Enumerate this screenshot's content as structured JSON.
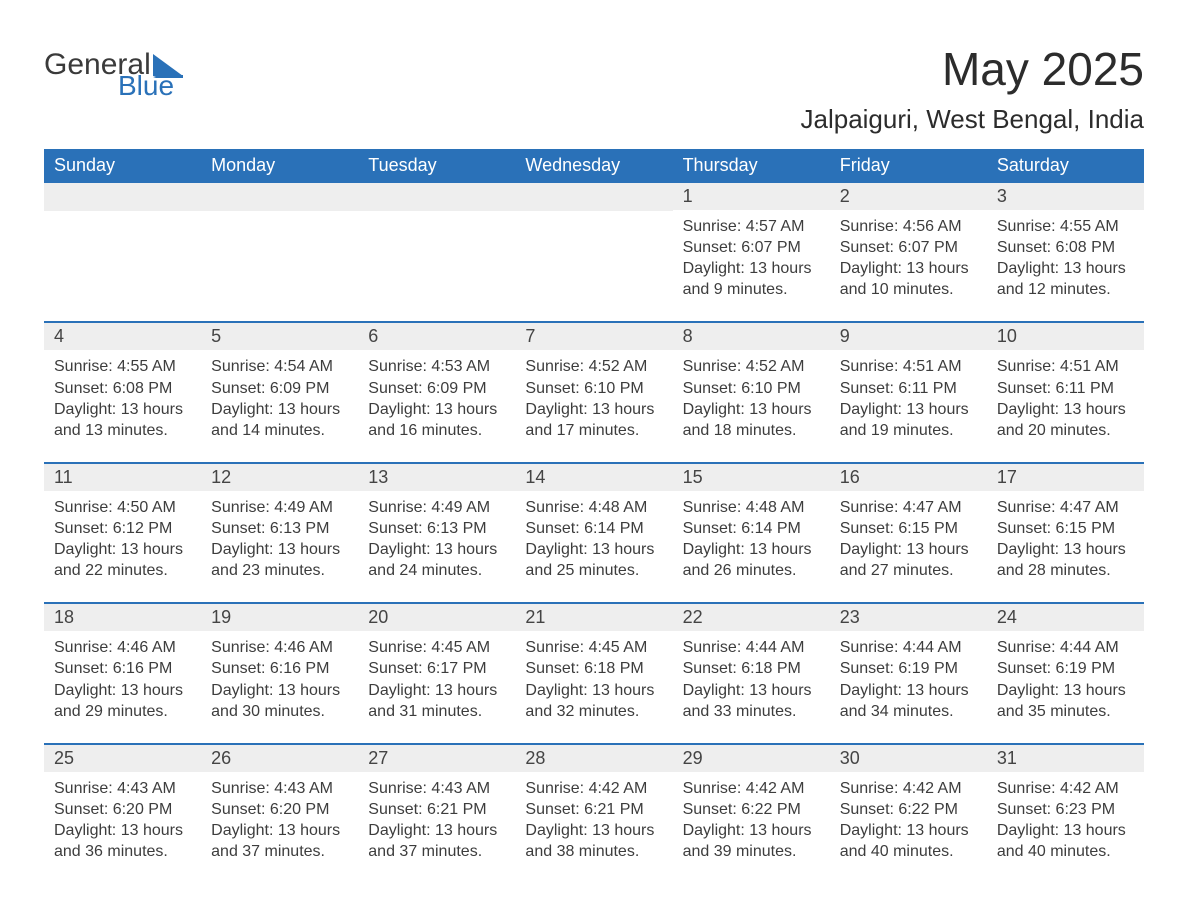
{
  "logo": {
    "text1": "General",
    "text2": "Blue"
  },
  "title": "May 2025",
  "location": "Jalpaiguri, West Bengal, India",
  "colors": {
    "accent": "#2a71b8",
    "header_text": "#ffffff",
    "daynum_bg": "#eeeeee",
    "body_text": "#3d3d3d",
    "background": "#ffffff"
  },
  "day_headers": [
    "Sunday",
    "Monday",
    "Tuesday",
    "Wednesday",
    "Thursday",
    "Friday",
    "Saturday"
  ],
  "weeks": [
    [
      {
        "num": "",
        "sunrise": "",
        "sunset": "",
        "daylight": ""
      },
      {
        "num": "",
        "sunrise": "",
        "sunset": "",
        "daylight": ""
      },
      {
        "num": "",
        "sunrise": "",
        "sunset": "",
        "daylight": ""
      },
      {
        "num": "",
        "sunrise": "",
        "sunset": "",
        "daylight": ""
      },
      {
        "num": "1",
        "sunrise": "Sunrise: 4:57 AM",
        "sunset": "Sunset: 6:07 PM",
        "daylight": "Daylight: 13 hours and 9 minutes."
      },
      {
        "num": "2",
        "sunrise": "Sunrise: 4:56 AM",
        "sunset": "Sunset: 6:07 PM",
        "daylight": "Daylight: 13 hours and 10 minutes."
      },
      {
        "num": "3",
        "sunrise": "Sunrise: 4:55 AM",
        "sunset": "Sunset: 6:08 PM",
        "daylight": "Daylight: 13 hours and 12 minutes."
      }
    ],
    [
      {
        "num": "4",
        "sunrise": "Sunrise: 4:55 AM",
        "sunset": "Sunset: 6:08 PM",
        "daylight": "Daylight: 13 hours and 13 minutes."
      },
      {
        "num": "5",
        "sunrise": "Sunrise: 4:54 AM",
        "sunset": "Sunset: 6:09 PM",
        "daylight": "Daylight: 13 hours and 14 minutes."
      },
      {
        "num": "6",
        "sunrise": "Sunrise: 4:53 AM",
        "sunset": "Sunset: 6:09 PM",
        "daylight": "Daylight: 13 hours and 16 minutes."
      },
      {
        "num": "7",
        "sunrise": "Sunrise: 4:52 AM",
        "sunset": "Sunset: 6:10 PM",
        "daylight": "Daylight: 13 hours and 17 minutes."
      },
      {
        "num": "8",
        "sunrise": "Sunrise: 4:52 AM",
        "sunset": "Sunset: 6:10 PM",
        "daylight": "Daylight: 13 hours and 18 minutes."
      },
      {
        "num": "9",
        "sunrise": "Sunrise: 4:51 AM",
        "sunset": "Sunset: 6:11 PM",
        "daylight": "Daylight: 13 hours and 19 minutes."
      },
      {
        "num": "10",
        "sunrise": "Sunrise: 4:51 AM",
        "sunset": "Sunset: 6:11 PM",
        "daylight": "Daylight: 13 hours and 20 minutes."
      }
    ],
    [
      {
        "num": "11",
        "sunrise": "Sunrise: 4:50 AM",
        "sunset": "Sunset: 6:12 PM",
        "daylight": "Daylight: 13 hours and 22 minutes."
      },
      {
        "num": "12",
        "sunrise": "Sunrise: 4:49 AM",
        "sunset": "Sunset: 6:13 PM",
        "daylight": "Daylight: 13 hours and 23 minutes."
      },
      {
        "num": "13",
        "sunrise": "Sunrise: 4:49 AM",
        "sunset": "Sunset: 6:13 PM",
        "daylight": "Daylight: 13 hours and 24 minutes."
      },
      {
        "num": "14",
        "sunrise": "Sunrise: 4:48 AM",
        "sunset": "Sunset: 6:14 PM",
        "daylight": "Daylight: 13 hours and 25 minutes."
      },
      {
        "num": "15",
        "sunrise": "Sunrise: 4:48 AM",
        "sunset": "Sunset: 6:14 PM",
        "daylight": "Daylight: 13 hours and 26 minutes."
      },
      {
        "num": "16",
        "sunrise": "Sunrise: 4:47 AM",
        "sunset": "Sunset: 6:15 PM",
        "daylight": "Daylight: 13 hours and 27 minutes."
      },
      {
        "num": "17",
        "sunrise": "Sunrise: 4:47 AM",
        "sunset": "Sunset: 6:15 PM",
        "daylight": "Daylight: 13 hours and 28 minutes."
      }
    ],
    [
      {
        "num": "18",
        "sunrise": "Sunrise: 4:46 AM",
        "sunset": "Sunset: 6:16 PM",
        "daylight": "Daylight: 13 hours and 29 minutes."
      },
      {
        "num": "19",
        "sunrise": "Sunrise: 4:46 AM",
        "sunset": "Sunset: 6:16 PM",
        "daylight": "Daylight: 13 hours and 30 minutes."
      },
      {
        "num": "20",
        "sunrise": "Sunrise: 4:45 AM",
        "sunset": "Sunset: 6:17 PM",
        "daylight": "Daylight: 13 hours and 31 minutes."
      },
      {
        "num": "21",
        "sunrise": "Sunrise: 4:45 AM",
        "sunset": "Sunset: 6:18 PM",
        "daylight": "Daylight: 13 hours and 32 minutes."
      },
      {
        "num": "22",
        "sunrise": "Sunrise: 4:44 AM",
        "sunset": "Sunset: 6:18 PM",
        "daylight": "Daylight: 13 hours and 33 minutes."
      },
      {
        "num": "23",
        "sunrise": "Sunrise: 4:44 AM",
        "sunset": "Sunset: 6:19 PM",
        "daylight": "Daylight: 13 hours and 34 minutes."
      },
      {
        "num": "24",
        "sunrise": "Sunrise: 4:44 AM",
        "sunset": "Sunset: 6:19 PM",
        "daylight": "Daylight: 13 hours and 35 minutes."
      }
    ],
    [
      {
        "num": "25",
        "sunrise": "Sunrise: 4:43 AM",
        "sunset": "Sunset: 6:20 PM",
        "daylight": "Daylight: 13 hours and 36 minutes."
      },
      {
        "num": "26",
        "sunrise": "Sunrise: 4:43 AM",
        "sunset": "Sunset: 6:20 PM",
        "daylight": "Daylight: 13 hours and 37 minutes."
      },
      {
        "num": "27",
        "sunrise": "Sunrise: 4:43 AM",
        "sunset": "Sunset: 6:21 PM",
        "daylight": "Daylight: 13 hours and 37 minutes."
      },
      {
        "num": "28",
        "sunrise": "Sunrise: 4:42 AM",
        "sunset": "Sunset: 6:21 PM",
        "daylight": "Daylight: 13 hours and 38 minutes."
      },
      {
        "num": "29",
        "sunrise": "Sunrise: 4:42 AM",
        "sunset": "Sunset: 6:22 PM",
        "daylight": "Daylight: 13 hours and 39 minutes."
      },
      {
        "num": "30",
        "sunrise": "Sunrise: 4:42 AM",
        "sunset": "Sunset: 6:22 PM",
        "daylight": "Daylight: 13 hours and 40 minutes."
      },
      {
        "num": "31",
        "sunrise": "Sunrise: 4:42 AM",
        "sunset": "Sunset: 6:23 PM",
        "daylight": "Daylight: 13 hours and 40 minutes."
      }
    ]
  ]
}
